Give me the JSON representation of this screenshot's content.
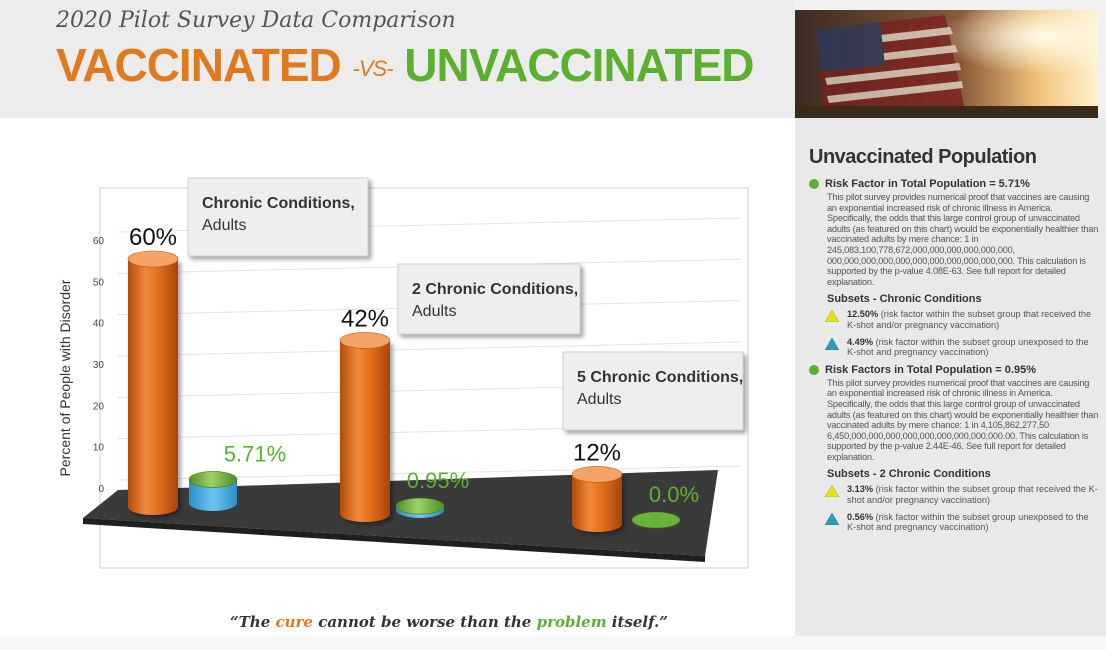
{
  "header": {
    "subtitle": "2020 Pilot Survey Data Comparison",
    "title_left": "VACCINATED",
    "title_vs": "-VS-",
    "title_right": "UNVACCINATED"
  },
  "chart_data": {
    "type": "bar",
    "ylabel": "Percent of People with Disorder",
    "ylim": [
      0,
      65
    ],
    "yticks": [
      "0",
      "10",
      "20",
      "30",
      "40",
      "50",
      "60"
    ],
    "categories": [
      "Chronic Conditions, Adults",
      "2 Chronic Conditions, Adults",
      "5 Chronic Conditions, Adults"
    ],
    "series": [
      {
        "values": [
          60,
          42,
          12
        ],
        "labels": [
          "60%",
          "42%",
          "12%"
        ],
        "color": "#e2701d"
      },
      {
        "values": [
          5.71,
          0.95,
          0.0
        ],
        "labels": [
          "5.71%",
          "0.95%",
          "0.0%"
        ],
        "color": "#6bb23a"
      }
    ],
    "callouts": [
      {
        "line1": "Chronic Conditions,",
        "line2": "Adults"
      },
      {
        "line1": "2 Chronic Conditions,",
        "line2": "Adults"
      },
      {
        "line1": "5 Chronic Conditions,",
        "line2": "Adults"
      }
    ]
  },
  "sidebar": {
    "heading": "Unvaccinated Population",
    "rf1": {
      "head": "Risk Factor in Total Population = 5.71%",
      "body": "This pilot survey provides numerical proof that vaccines are causing an exponential increased risk of chronic illness in America. Specifically, the odds that this large control group of unvaccinated adults (as featured on this chart) would be exponentially healthier than vaccinated adults by mere chance: 1 in 245,083,100,778,672,000,000,000,000,000,000, 000,000,000,000,000,000,000,000,000,000,000. This calculation is supported by the p-value 4.08E-63. See full report for detailed explanation.",
      "subhead": "Subsets - Chronic Conditions",
      "s1_val": "12.50%",
      "s1_text": "(risk factor within the subset group that received the K-shot and/or pregnancy vaccination)",
      "s2_val": "4.49%",
      "s2_text": "(risk factor within the subset group unexposed to the K-shot and pregnancy vaccination)"
    },
    "rf2": {
      "head": "Risk Factors in Total Population = 0.95%",
      "body": "This pilot survey provides numerical proof that vaccines are causing an exponential increased risk of chronic illness in America. Specifically, the odds that this large control group of unvaccinated adults (as featured on this chart) would be exponentially healthier than vaccinated adults by mere chance: 1 in 4,105,862,277,50 6,450,000,000,000,000,000,000,000,000,000.00. This calculation is supported by the p-value 2.44E-46. See full report for detailed explanation.",
      "subhead": "Subsets - 2 Chronic Conditions",
      "s1_val": "3.13%",
      "s1_text": "(risk factor within the subset group that received the K-shot and/or pregnancy vaccination)",
      "s2_val": "0.56%",
      "s2_text": "(risk factor within the subset group unexposed to the K-shot and pregnancy vaccination)"
    }
  },
  "quote": {
    "p1": "“The ",
    "cure": "cure",
    "p2": " cannot be worse than the ",
    "problem": "problem",
    "p3": " itself.”"
  }
}
